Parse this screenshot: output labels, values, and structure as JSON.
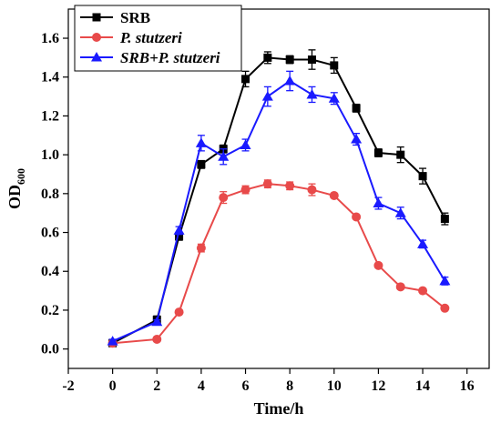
{
  "chart_data": {
    "type": "line",
    "xlabel": "Time/h",
    "ylabel": "OD",
    "ylabel_subscript": "600",
    "xlim": [
      -2,
      17
    ],
    "ylim": [
      -0.1,
      1.75
    ],
    "xticks": [
      -2,
      0,
      2,
      4,
      6,
      8,
      10,
      12,
      14,
      16
    ],
    "yticks": [
      0.0,
      0.2,
      0.4,
      0.6,
      0.8,
      1.0,
      1.2,
      1.4,
      1.6
    ],
    "grid": false,
    "legend_position": "top-left",
    "series": [
      {
        "name": "SRB",
        "italic": false,
        "color": "#000000",
        "marker": "square",
        "x": [
          0,
          2,
          3,
          4,
          5,
          6,
          7,
          8,
          9,
          10,
          11,
          12,
          13,
          14,
          15
        ],
        "y": [
          0.03,
          0.15,
          0.58,
          0.95,
          1.03,
          1.39,
          1.5,
          1.49,
          1.49,
          1.46,
          1.24,
          1.01,
          1.0,
          0.89,
          0.67
        ],
        "err": [
          0.01,
          0.02,
          0.02,
          0.02,
          0.02,
          0.04,
          0.03,
          0.02,
          0.05,
          0.04,
          0.02,
          0.02,
          0.04,
          0.04,
          0.03
        ]
      },
      {
        "name": "P. stutzeri",
        "italic": true,
        "color": "#e84a4a",
        "marker": "circle",
        "x": [
          0,
          2,
          3,
          4,
          5,
          6,
          7,
          8,
          9,
          10,
          11,
          12,
          13,
          14,
          15
        ],
        "y": [
          0.03,
          0.05,
          0.19,
          0.52,
          0.78,
          0.82,
          0.85,
          0.84,
          0.82,
          0.79,
          0.68,
          0.43,
          0.32,
          0.3,
          0.21
        ],
        "err": [
          0.01,
          0.01,
          0.01,
          0.02,
          0.03,
          0.02,
          0.02,
          0.02,
          0.03,
          0.01,
          0.01,
          0.01,
          0.01,
          0.01,
          0.01
        ]
      },
      {
        "name": "SRB+P. stutzeri",
        "italic": true,
        "color": "#1a1aff",
        "marker": "triangle",
        "x": [
          0,
          2,
          3,
          4,
          5,
          6,
          7,
          8,
          9,
          10,
          11,
          12,
          13,
          14,
          15
        ],
        "y": [
          0.04,
          0.14,
          0.61,
          1.06,
          0.99,
          1.05,
          1.3,
          1.38,
          1.31,
          1.29,
          1.08,
          0.75,
          0.7,
          0.54,
          0.35
        ],
        "err": [
          0.01,
          0.01,
          0.02,
          0.04,
          0.04,
          0.03,
          0.05,
          0.05,
          0.04,
          0.03,
          0.03,
          0.03,
          0.03,
          0.02,
          0.02
        ]
      }
    ]
  }
}
